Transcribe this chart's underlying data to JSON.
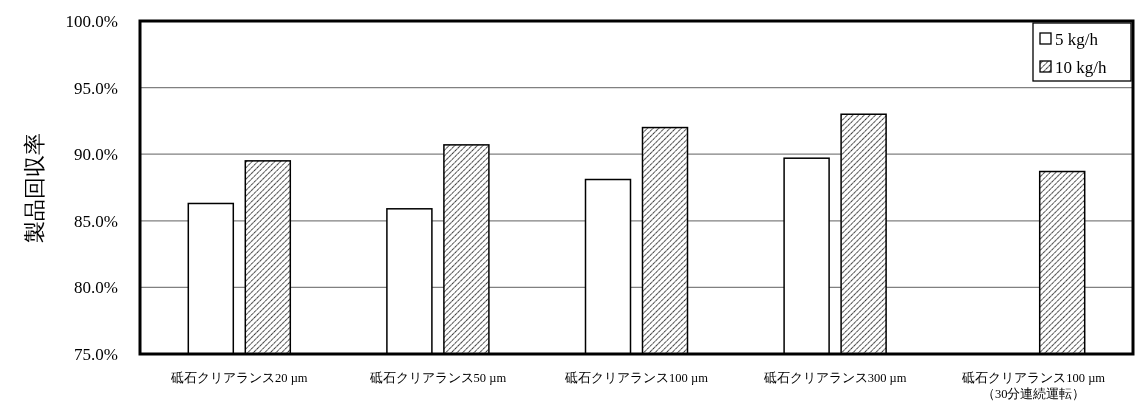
{
  "chart_data": {
    "type": "bar",
    "ylabel": "製品回収率",
    "categories": [
      "砥石クリアランス20 µm",
      "砥石クリアランス50 µm",
      "砥石クリアランス100 µm",
      "砥石クリアランス300 µm",
      "砥石クリアランス100 µm\n（30分連続運転）"
    ],
    "series": [
      {
        "name": "5 kg/h",
        "color": "#ffffff",
        "values": [
          86.3,
          85.9,
          88.1,
          89.7,
          null
        ]
      },
      {
        "name": "10 kg/h",
        "color": "#000000",
        "values": [
          89.5,
          90.7,
          92.0,
          93.0,
          88.7
        ]
      }
    ],
    "ylim": [
      75,
      100
    ],
    "yticks": [
      {
        "value": 75,
        "label": "75.0%"
      },
      {
        "value": 80,
        "label": "80.0%"
      },
      {
        "value": 85,
        "label": "85.0%"
      },
      {
        "value": 90,
        "label": "90.0%"
      },
      {
        "value": 95,
        "label": "95.0%"
      },
      {
        "value": 100,
        "label": "100.0%"
      }
    ],
    "grid": "y",
    "legend": "top right"
  }
}
